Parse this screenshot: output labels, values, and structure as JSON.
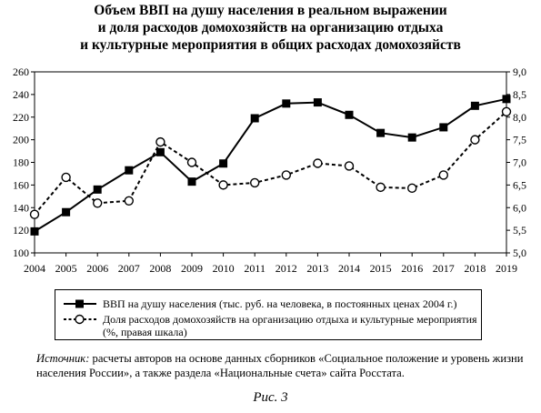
{
  "chart_data": {
    "type": "line",
    "title": [
      "Объем ВВП на душу населения в реальном выражении",
      "и доля расходов домохозяйств на организацию отдыха",
      "и культурные мероприятия в общих расходах домохозяйств"
    ],
    "x": [
      "2004",
      "2005",
      "2006",
      "2007",
      "2008",
      "2009",
      "2010",
      "2011",
      "2012",
      "2013",
      "2014",
      "2015",
      "2016",
      "2017",
      "2018",
      "2019"
    ],
    "left_axis": {
      "ylim": [
        100,
        260
      ],
      "ticks": [
        "100",
        "120",
        "140",
        "160",
        "180",
        "200",
        "220",
        "240",
        "260"
      ]
    },
    "right_axis": {
      "ylim": [
        5.0,
        9.0
      ],
      "ticks": [
        "5,0",
        "5,5",
        "6,0",
        "6,5",
        "7,0",
        "7,5",
        "8,0",
        "8,5",
        "9,0"
      ]
    },
    "grid": false,
    "legend_placement": "below",
    "series": [
      {
        "name": "ВВП на душу населения (тыс. руб. на человека, в постоянных ценах 2004 г.)",
        "axis": "left",
        "style": "solid",
        "marker": "filled-square",
        "values": [
          119,
          136,
          156,
          173,
          189,
          163,
          179,
          219,
          232,
          233,
          222,
          206,
          202,
          211,
          230,
          236
        ]
      },
      {
        "name": "Доля расходов домохозяйств на организацию отдыха и культурные мероприятия (%, правая шкала)",
        "axis": "right",
        "style": "dashed",
        "marker": "open-circle",
        "values": [
          5.85,
          6.67,
          6.1,
          6.15,
          7.45,
          7.0,
          6.5,
          6.55,
          6.72,
          6.98,
          6.92,
          6.45,
          6.43,
          6.72,
          7.5,
          8.12
        ]
      }
    ]
  },
  "legend": {
    "gdp": "ВВП на душу населения (тыс. руб. на человека, в постоянных ценах 2004 г.)",
    "share_line1": "Доля расходов домохозяйств на организацию отдыха и культурные мероприятия",
    "share_line2": "(%, правая шкала)"
  },
  "source": {
    "label": "Источник:",
    "text": " расчеты авторов на основе данных сборников «Социальное положение и уровень жизни населения России», а также раздела «Национальные счета» сайта Росстата."
  },
  "caption": "Рис. 3"
}
